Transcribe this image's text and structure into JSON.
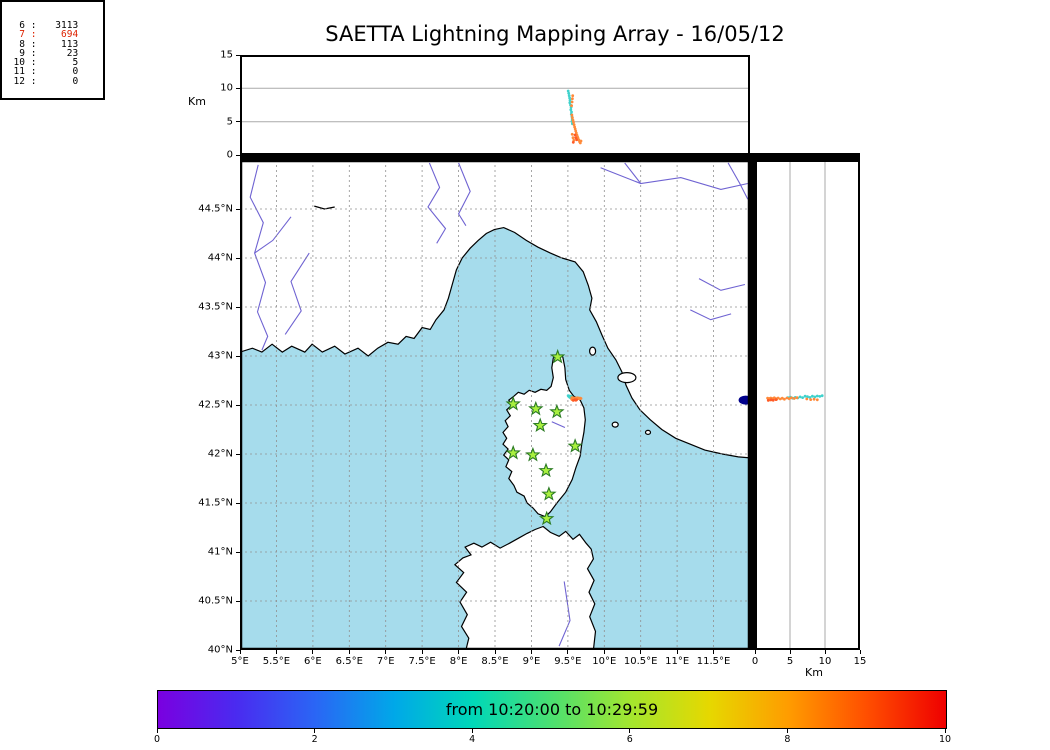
{
  "title": "SAETTA Lightning Mapping Array - 16/05/12",
  "chart_data": {
    "type": "scatter",
    "description": "Lightning Mapping Array composite: altitude-longitude panel (top), station-count histogram (top right), plan-view map with stations and sources (center), altitude-latitude panel (right), time colorbar (bottom)",
    "axes": {
      "lon": {
        "min": 5,
        "max": 12,
        "tick_values": [
          5,
          5.5,
          6,
          6.5,
          7,
          7.5,
          8,
          8.5,
          9,
          9.5,
          10,
          10.5,
          11,
          11.5
        ],
        "tick_labels": [
          "5°E",
          "5.5°E",
          "6°E",
          "6.5°E",
          "7°E",
          "7.5°E",
          "8°E",
          "8.5°E",
          "9°E",
          "9.5°E",
          "10°E",
          "10.5°E",
          "11°E",
          "11.5°E"
        ]
      },
      "lat": {
        "min": 40,
        "max": 45,
        "tick_values": [
          44.5,
          44,
          43.5,
          43,
          42.5,
          42,
          41.5,
          41,
          40.5,
          40
        ],
        "tick_labels": [
          "44.5°N",
          "44°N",
          "43.5°N",
          "43°N",
          "42.5°N",
          "42°N",
          "41.5°N",
          "41°N",
          "40.5°N",
          "40°N"
        ]
      },
      "alt": {
        "min": 0,
        "max": 15,
        "unit": "Km",
        "tick_values": [
          0,
          5,
          10,
          15
        ],
        "tick_labels": [
          "0",
          "5",
          "10",
          "15"
        ],
        "grid": [
          5,
          10
        ]
      }
    },
    "stats": {
      "rows": [
        {
          "n": "6",
          "v": "3113",
          "red": false
        },
        {
          "n": "7",
          "v": "694",
          "red": true
        },
        {
          "n": "8",
          "v": "113",
          "red": false
        },
        {
          "n": "9",
          "v": "23",
          "red": false
        },
        {
          "n": "10",
          "v": "5",
          "red": false
        },
        {
          "n": "11",
          "v": "0",
          "red": false
        },
        {
          "n": "12",
          "v": "0",
          "red": false
        }
      ]
    },
    "colors": {
      "sea": "#a6dcec",
      "land": "#ffffff",
      "coast": "#000000",
      "river": "#6f63d2",
      "grid": "#909090",
      "star_fill": "#a9f03f",
      "star_stroke": "#2a7a22",
      "t1": "#3fd2cc",
      "t2": "#ff8a3a",
      "t3": "#ff5a26",
      "blue_dot": "#00008b",
      "stat_red": "#dd2200"
    },
    "map": {
      "mainland": [
        [
          5.0,
          43.04
        ],
        [
          5.17,
          43.08
        ],
        [
          5.3,
          43.04
        ],
        [
          5.44,
          43.12
        ],
        [
          5.58,
          43.04
        ],
        [
          5.71,
          43.1
        ],
        [
          5.89,
          43.04
        ],
        [
          5.99,
          43.12
        ],
        [
          6.13,
          43.04
        ],
        [
          6.3,
          43.1
        ],
        [
          6.44,
          43.02
        ],
        [
          6.62,
          43.08
        ],
        [
          6.76,
          43.0
        ],
        [
          6.89,
          43.08
        ],
        [
          7.03,
          43.14
        ],
        [
          7.17,
          43.12
        ],
        [
          7.28,
          43.2
        ],
        [
          7.39,
          43.18
        ],
        [
          7.5,
          43.29
        ],
        [
          7.61,
          43.27
        ],
        [
          7.69,
          43.37
        ],
        [
          7.8,
          43.47
        ],
        [
          7.86,
          43.59
        ],
        [
          7.91,
          43.72
        ],
        [
          7.97,
          43.88
        ],
        [
          8.05,
          44.0
        ],
        [
          8.16,
          44.1
        ],
        [
          8.27,
          44.18
        ],
        [
          8.38,
          44.25
        ],
        [
          8.49,
          44.29
        ],
        [
          8.62,
          44.31
        ],
        [
          8.77,
          44.26
        ],
        [
          8.93,
          44.18
        ],
        [
          9.09,
          44.11
        ],
        [
          9.26,
          44.05
        ],
        [
          9.42,
          44.0
        ],
        [
          9.6,
          43.96
        ],
        [
          9.71,
          43.86
        ],
        [
          9.78,
          43.72
        ],
        [
          9.83,
          43.59
        ],
        [
          9.8,
          43.47
        ],
        [
          9.89,
          43.35
        ],
        [
          9.97,
          43.21
        ],
        [
          10.05,
          43.08
        ],
        [
          10.16,
          42.96
        ],
        [
          10.24,
          42.84
        ],
        [
          10.3,
          42.7
        ],
        [
          10.38,
          42.57
        ],
        [
          10.49,
          42.45
        ],
        [
          10.63,
          42.35
        ],
        [
          10.79,
          42.25
        ],
        [
          10.98,
          42.16
        ],
        [
          11.18,
          42.1
        ],
        [
          11.38,
          42.04
        ],
        [
          11.62,
          42.0
        ],
        [
          11.84,
          41.97
        ],
        [
          12.0,
          41.96
        ],
        [
          12.0,
          45.0
        ],
        [
          5.0,
          45.0
        ]
      ],
      "corsica": [
        [
          9.35,
          43.02
        ],
        [
          9.43,
          42.99
        ],
        [
          9.46,
          42.88
        ],
        [
          9.47,
          42.76
        ],
        [
          9.52,
          42.65
        ],
        [
          9.58,
          42.59
        ],
        [
          9.67,
          42.55
        ],
        [
          9.72,
          42.47
        ],
        [
          9.74,
          42.35
        ],
        [
          9.72,
          42.22
        ],
        [
          9.69,
          42.1
        ],
        [
          9.67,
          41.98
        ],
        [
          9.61,
          41.86
        ],
        [
          9.56,
          41.74
        ],
        [
          9.47,
          41.61
        ],
        [
          9.36,
          41.51
        ],
        [
          9.26,
          41.41
        ],
        [
          9.19,
          41.36
        ],
        [
          9.09,
          41.39
        ],
        [
          9.02,
          41.45
        ],
        [
          8.94,
          41.5
        ],
        [
          8.9,
          41.57
        ],
        [
          8.8,
          41.61
        ],
        [
          8.76,
          41.68
        ],
        [
          8.69,
          41.75
        ],
        [
          8.73,
          41.82
        ],
        [
          8.65,
          41.87
        ],
        [
          8.69,
          41.94
        ],
        [
          8.62,
          41.99
        ],
        [
          8.68,
          42.05
        ],
        [
          8.61,
          42.1
        ],
        [
          8.66,
          42.16
        ],
        [
          8.61,
          42.22
        ],
        [
          8.68,
          42.28
        ],
        [
          8.64,
          42.34
        ],
        [
          8.71,
          42.39
        ],
        [
          8.66,
          42.45
        ],
        [
          8.73,
          42.5
        ],
        [
          8.69,
          42.55
        ],
        [
          8.76,
          42.59
        ],
        [
          8.82,
          42.63
        ],
        [
          8.9,
          42.61
        ],
        [
          8.97,
          42.65
        ],
        [
          9.05,
          42.63
        ],
        [
          9.13,
          42.66
        ],
        [
          9.21,
          42.65
        ],
        [
          9.27,
          42.69
        ],
        [
          9.3,
          42.78
        ],
        [
          9.28,
          42.88
        ],
        [
          9.3,
          42.98
        ]
      ],
      "sardinia": [
        [
          9.16,
          41.26
        ],
        [
          9.26,
          41.2
        ],
        [
          9.38,
          41.16
        ],
        [
          9.47,
          41.21
        ],
        [
          9.57,
          41.13
        ],
        [
          9.66,
          41.18
        ],
        [
          9.75,
          41.09
        ],
        [
          9.82,
          41.03
        ],
        [
          9.85,
          40.93
        ],
        [
          9.77,
          40.83
        ],
        [
          9.86,
          40.71
        ],
        [
          9.79,
          40.59
        ],
        [
          9.87,
          40.47
        ],
        [
          9.8,
          40.34
        ],
        [
          9.88,
          40.19
        ],
        [
          9.85,
          40.0
        ],
        [
          8.1,
          40.0
        ],
        [
          8.14,
          40.12
        ],
        [
          8.04,
          40.24
        ],
        [
          8.12,
          40.36
        ],
        [
          8.02,
          40.49
        ],
        [
          8.11,
          40.59
        ],
        [
          7.97,
          40.69
        ],
        [
          8.07,
          40.79
        ],
        [
          7.95,
          40.87
        ],
        [
          8.06,
          40.94
        ],
        [
          8.17,
          40.97
        ],
        [
          8.09,
          41.05
        ],
        [
          8.21,
          41.09
        ],
        [
          8.32,
          41.05
        ],
        [
          8.44,
          41.1
        ],
        [
          8.57,
          41.04
        ],
        [
          8.7,
          41.09
        ],
        [
          8.82,
          41.14
        ],
        [
          8.94,
          41.19
        ],
        [
          9.05,
          41.23
        ]
      ],
      "islands": [
        {
          "lon": 9.84,
          "lat": 43.05,
          "rx": 3,
          "ry": 4
        },
        {
          "lon": 10.31,
          "lat": 42.78,
          "rx": 9,
          "ry": 5
        },
        {
          "lon": 10.15,
          "lat": 42.3,
          "rx": 3,
          "ry": 2.5
        },
        {
          "lon": 10.6,
          "lat": 42.22,
          "rx": 2.5,
          "ry": 2
        }
      ],
      "rivers": [
        [
          [
            5.25,
            44.95
          ],
          [
            5.14,
            44.62
          ],
          [
            5.32,
            44.36
          ],
          [
            5.2,
            44.05
          ],
          [
            5.35,
            43.75
          ],
          [
            5.24,
            43.45
          ],
          [
            5.38,
            43.2
          ],
          [
            5.3,
            43.06
          ]
        ],
        [
          [
            5.7,
            44.42
          ],
          [
            5.45,
            44.18
          ],
          [
            5.2,
            44.05
          ]
        ],
        [
          [
            5.95,
            44.05
          ],
          [
            5.7,
            43.76
          ],
          [
            5.84,
            43.46
          ],
          [
            5.62,
            43.22
          ]
        ],
        [
          [
            7.6,
            44.97
          ],
          [
            7.74,
            44.72
          ],
          [
            7.58,
            44.52
          ],
          [
            7.82,
            44.3
          ],
          [
            7.7,
            44.15
          ]
        ],
        [
          [
            8.0,
            44.97
          ],
          [
            8.16,
            44.68
          ],
          [
            8.0,
            44.45
          ],
          [
            8.1,
            44.33
          ]
        ],
        [
          [
            9.95,
            44.92
          ],
          [
            10.5,
            44.76
          ],
          [
            11.05,
            44.82
          ],
          [
            11.6,
            44.7
          ],
          [
            11.97,
            44.76
          ]
        ],
        [
          [
            10.28,
            44.97
          ],
          [
            10.5,
            44.76
          ]
        ],
        [
          [
            11.3,
            43.79
          ],
          [
            11.6,
            43.67
          ],
          [
            11.93,
            43.73
          ]
        ],
        [
          [
            11.18,
            43.47
          ],
          [
            11.46,
            43.37
          ],
          [
            11.74,
            43.43
          ]
        ],
        [
          [
            11.7,
            44.97
          ],
          [
            11.86,
            44.76
          ],
          [
            11.97,
            44.6
          ]
        ],
        [
          [
            9.28,
            42.33
          ],
          [
            9.46,
            42.27
          ]
        ],
        [
          [
            9.45,
            40.7
          ],
          [
            9.53,
            40.3
          ],
          [
            9.38,
            40.04
          ]
        ]
      ],
      "lake": [
        [
          6.02,
          44.53
        ],
        [
          6.16,
          44.5
        ],
        [
          6.3,
          44.52
        ]
      ],
      "blue_dot": {
        "lon": 11.94,
        "lat": 42.55,
        "rx": 7,
        "ry": 4.5
      }
    },
    "stations": [
      [
        9.36,
        42.99
      ],
      [
        8.75,
        42.51
      ],
      [
        9.06,
        42.46
      ],
      [
        9.35,
        42.43
      ],
      [
        9.12,
        42.29
      ],
      [
        9.6,
        42.08
      ],
      [
        8.75,
        42.01
      ],
      [
        9.02,
        41.99
      ],
      [
        9.2,
        41.83
      ],
      [
        9.24,
        41.59
      ],
      [
        9.21,
        41.34
      ]
    ],
    "sources": [
      [
        9.505,
        42.595,
        9.6,
        "t1"
      ],
      [
        9.512,
        42.588,
        9.25,
        "t1"
      ],
      [
        9.518,
        42.592,
        8.9,
        "t1"
      ],
      [
        9.524,
        42.583,
        8.55,
        "t1"
      ],
      [
        9.53,
        42.59,
        8.2,
        "t1"
      ],
      [
        9.526,
        42.578,
        7.85,
        "t1"
      ],
      [
        9.536,
        42.585,
        7.5,
        "t1"
      ],
      [
        9.544,
        42.59,
        7.15,
        "t1"
      ],
      [
        9.54,
        42.576,
        6.8,
        "t1"
      ],
      [
        9.55,
        42.583,
        6.45,
        "t1"
      ],
      [
        9.547,
        42.571,
        6.1,
        "t1"
      ],
      [
        9.555,
        42.578,
        5.75,
        "t1"
      ],
      [
        9.56,
        42.569,
        5.4,
        "t1"
      ],
      [
        9.557,
        42.581,
        5.05,
        "t1"
      ],
      [
        9.563,
        42.574,
        4.7,
        "t1"
      ],
      [
        9.556,
        42.574,
        6.0,
        "t2"
      ],
      [
        9.563,
        42.566,
        5.6,
        "t2"
      ],
      [
        9.571,
        42.573,
        5.2,
        "t2"
      ],
      [
        9.578,
        42.564,
        4.9,
        "t2"
      ],
      [
        9.586,
        42.571,
        4.55,
        "t2"
      ],
      [
        9.593,
        42.559,
        4.2,
        "t2"
      ],
      [
        9.601,
        42.569,
        3.9,
        "t2"
      ],
      [
        9.608,
        42.561,
        3.6,
        "t2"
      ],
      [
        9.616,
        42.571,
        3.3,
        "t2"
      ],
      [
        9.624,
        42.564,
        3.0,
        "t2"
      ],
      [
        9.632,
        42.573,
        2.75,
        "t2"
      ],
      [
        9.641,
        42.566,
        2.5,
        "t2"
      ],
      [
        9.651,
        42.571,
        2.25,
        "t2"
      ],
      [
        9.661,
        42.564,
        2.0,
        "t2"
      ],
      [
        9.671,
        42.57,
        1.8,
        "t2"
      ],
      [
        9.681,
        42.566,
        2.1,
        "t2"
      ],
      [
        9.56,
        42.559,
        3.1,
        "t2"
      ],
      [
        9.571,
        42.554,
        2.6,
        "t2"
      ],
      [
        9.581,
        42.551,
        2.2,
        "t2"
      ],
      [
        9.552,
        42.561,
        7.4,
        "t2"
      ],
      [
        9.558,
        42.555,
        7.95,
        "t2"
      ],
      [
        9.563,
        42.559,
        8.45,
        "t2"
      ],
      [
        9.567,
        42.553,
        8.9,
        "t2"
      ],
      [
        9.598,
        42.555,
        3.0,
        "t3"
      ],
      [
        9.609,
        42.549,
        2.6,
        "t3"
      ],
      [
        9.62,
        42.553,
        2.3,
        "t3"
      ],
      [
        9.575,
        42.547,
        1.9,
        "t3"
      ]
    ],
    "colorbar": {
      "label": "from 10:20:00 to 10:29:59",
      "ticks": [
        "0",
        "2",
        "4",
        "6",
        "8",
        "10"
      ],
      "stops": [
        [
          "0%",
          "#7a00e0"
        ],
        [
          "10%",
          "#4a2bf0"
        ],
        [
          "20%",
          "#2a66f5"
        ],
        [
          "30%",
          "#00a8e8"
        ],
        [
          "40%",
          "#00d8b8"
        ],
        [
          "50%",
          "#4ce070"
        ],
        [
          "60%",
          "#a4e62e"
        ],
        [
          "70%",
          "#e6d800"
        ],
        [
          "80%",
          "#ff9c00"
        ],
        [
          "90%",
          "#ff4e00"
        ],
        [
          "100%",
          "#ef0000"
        ]
      ]
    }
  }
}
